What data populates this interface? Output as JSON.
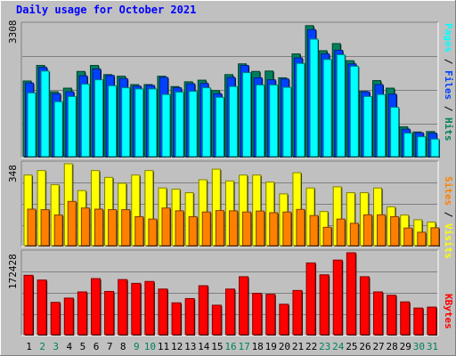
{
  "page": {
    "title": "Daily usage for October 2021"
  },
  "colors": {
    "background": "#c0c0c0",
    "panel": "#c0c0c0",
    "grid": "#808080",
    "hits": "#00805c",
    "files": "#0040ff",
    "pages": "#00ffff",
    "visits": "#ffff00",
    "sites": "#ff8000",
    "kbytes": "#ff0000",
    "day_default": "#000000",
    "day_weekend": "#00805c"
  },
  "chart_data": [
    {
      "type": "bar",
      "panel": "top",
      "ylim": [
        0,
        3308
      ],
      "ymax_label": "3308",
      "right_label": {
        "pages": "Pages",
        "files": "Files",
        "hits": "Hits",
        "sep": " / "
      },
      "categories": [
        "1",
        "2",
        "3",
        "4",
        "5",
        "6",
        "7",
        "8",
        "9",
        "10",
        "11",
        "12",
        "13",
        "14",
        "15",
        "16",
        "17",
        "18",
        "19",
        "20",
        "21",
        "22",
        "23",
        "24",
        "25",
        "26",
        "27",
        "28",
        "29",
        "30",
        "31"
      ],
      "series": [
        {
          "name": "Hits",
          "values": [
            1900,
            2290,
            1630,
            1720,
            2140,
            2290,
            2060,
            2020,
            1810,
            1810,
            2020,
            1760,
            1880,
            1920,
            1660,
            2060,
            2330,
            2140,
            2150,
            1980,
            2580,
            3290,
            2660,
            2840,
            2410,
            1640,
            1910,
            1720,
            750,
            620,
            630
          ]
        },
        {
          "name": "Files",
          "values": [
            1850,
            2240,
            1580,
            1630,
            2030,
            2200,
            2040,
            1960,
            1770,
            1790,
            1990,
            1730,
            1830,
            1840,
            1580,
            1990,
            2290,
            1980,
            1930,
            1950,
            2480,
            3190,
            2580,
            2670,
            2330,
            1630,
            1810,
            1570,
            690,
            600,
            590
          ]
        },
        {
          "name": "Pages",
          "values": [
            1600,
            2150,
            1380,
            1510,
            1820,
            1930,
            1780,
            1730,
            1700,
            1700,
            1560,
            1620,
            1640,
            1730,
            1490,
            1760,
            2110,
            1800,
            1800,
            1740,
            2340,
            2950,
            2440,
            2560,
            2270,
            1510,
            1560,
            1240,
            590,
            500,
            440
          ]
        }
      ]
    },
    {
      "type": "bar",
      "panel": "middle",
      "ylim": [
        0,
        348
      ],
      "ymax_label": "348",
      "right_label": {
        "sites": "Sites",
        "visits": "Visits",
        "sep": " / "
      },
      "categories": [
        "1",
        "2",
        "3",
        "4",
        "5",
        "6",
        "7",
        "8",
        "9",
        "10",
        "11",
        "12",
        "13",
        "14",
        "15",
        "16",
        "17",
        "18",
        "19",
        "20",
        "21",
        "22",
        "23",
        "24",
        "25",
        "26",
        "27",
        "28",
        "29",
        "30",
        "31"
      ],
      "series": [
        {
          "name": "Visits",
          "values": [
            300,
            319,
            259,
            348,
            234,
            319,
            290,
            265,
            300,
            319,
            245,
            240,
            225,
            280,
            325,
            275,
            300,
            300,
            270,
            220,
            310,
            245,
            145,
            250,
            225,
            225,
            245,
            165,
            130,
            110,
            100
          ]
        },
        {
          "name": "Sites",
          "values": [
            155,
            153,
            130,
            188,
            160,
            155,
            153,
            153,
            123,
            113,
            160,
            148,
            123,
            143,
            149,
            148,
            143,
            147,
            140,
            143,
            154,
            128,
            78,
            113,
            95,
            131,
            131,
            123,
            75,
            57,
            76
          ]
        }
      ]
    },
    {
      "type": "bar",
      "panel": "bottom",
      "ylim": [
        0,
        172428
      ],
      "ymax_label": "172428",
      "right_label": {
        "kbytes": "KBytes"
      },
      "categories": [
        "1",
        "2",
        "3",
        "4",
        "5",
        "6",
        "7",
        "8",
        "9",
        "10",
        "11",
        "12",
        "13",
        "14",
        "15",
        "16",
        "17",
        "18",
        "19",
        "20",
        "21",
        "22",
        "23",
        "24",
        "25",
        "26",
        "27",
        "28",
        "29",
        "30",
        "31"
      ],
      "series": [
        {
          "name": "KBytes",
          "values": [
            125000,
            115000,
            68000,
            77000,
            90000,
            118000,
            91000,
            116000,
            108000,
            112000,
            96000,
            67000,
            76000,
            103000,
            62000,
            96000,
            122000,
            87000,
            85000,
            64000,
            93000,
            151000,
            126000,
            157000,
            172428,
            122000,
            90000,
            83000,
            69000,
            56000,
            58000
          ]
        }
      ]
    }
  ],
  "weekend_days": [
    "2",
    "3",
    "9",
    "10",
    "16",
    "17",
    "23",
    "24",
    "30",
    "31"
  ]
}
